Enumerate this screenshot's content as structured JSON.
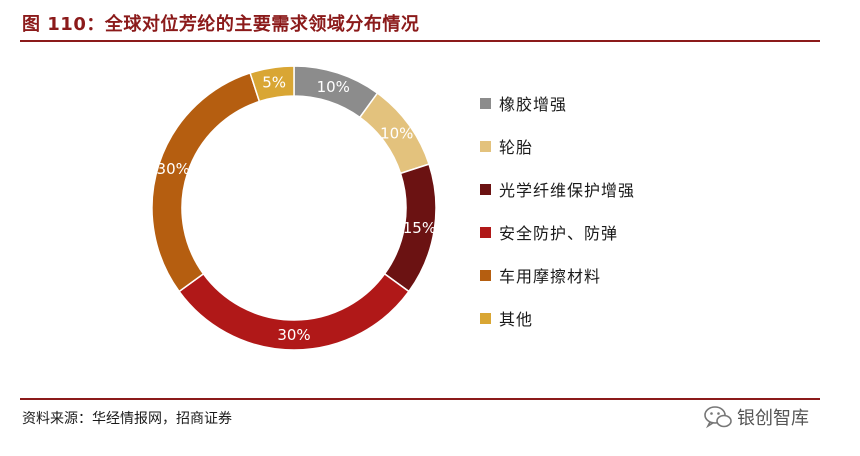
{
  "title": "图 110：全球对位芳纶的主要需求领域分布情况",
  "source": "资料来源：华经情报网，招商证券",
  "watermark": {
    "text": "银创智库",
    "icon": "wechat-icon"
  },
  "chart_data": {
    "type": "pie",
    "variant": "donut",
    "start_angle_deg": 0,
    "direction": "clockwise",
    "legend_position": "right",
    "slices": [
      {
        "label": "橡胶增强",
        "value": 10,
        "display": "10%",
        "color": "#8c8c8c"
      },
      {
        "label": "轮胎",
        "value": 10,
        "display": "10%",
        "color": "#e3c27d"
      },
      {
        "label": "光学纤维保护增强",
        "value": 15,
        "display": "15%",
        "color": "#6b1212"
      },
      {
        "label": "安全防护、防弹",
        "value": 30,
        "display": "30%",
        "color": "#b01818"
      },
      {
        "label": "车用摩擦材料",
        "value": 30,
        "display": "30%",
        "color": "#b55e10"
      },
      {
        "label": "其他",
        "value": 5,
        "display": "5%",
        "color": "#d9a634"
      }
    ]
  }
}
